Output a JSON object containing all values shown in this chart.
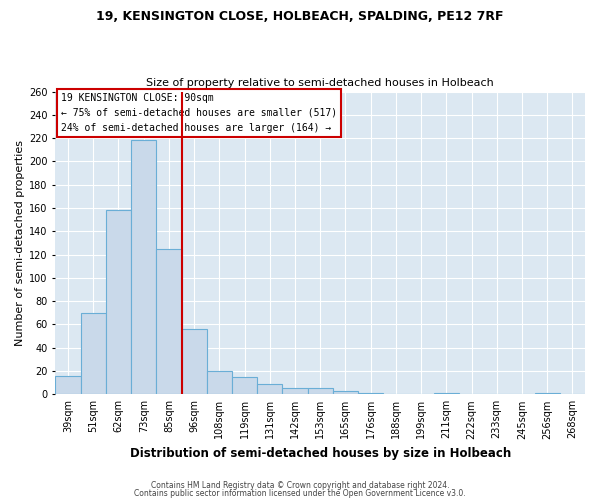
{
  "title": "19, KENSINGTON CLOSE, HOLBEACH, SPALDING, PE12 7RF",
  "subtitle": "Size of property relative to semi-detached houses in Holbeach",
  "xlabel": "Distribution of semi-detached houses by size in Holbeach",
  "ylabel": "Number of semi-detached properties",
  "bin_labels": [
    "39sqm",
    "51sqm",
    "62sqm",
    "73sqm",
    "85sqm",
    "96sqm",
    "108sqm",
    "119sqm",
    "131sqm",
    "142sqm",
    "153sqm",
    "165sqm",
    "176sqm",
    "188sqm",
    "199sqm",
    "211sqm",
    "222sqm",
    "233sqm",
    "245sqm",
    "256sqm",
    "268sqm"
  ],
  "bin_values": [
    16,
    70,
    158,
    218,
    125,
    56,
    20,
    15,
    9,
    5,
    5,
    3,
    1,
    0,
    0,
    1,
    0,
    0,
    0,
    1,
    0
  ],
  "vline_index": 4.5,
  "annotation_title": "19 KENSINGTON CLOSE: 90sqm",
  "annotation_line1": "← 75% of semi-detached houses are smaller (517)",
  "annotation_line2": "24% of semi-detached houses are larger (164) →",
  "bar_face_color": "#c9d9ea",
  "bar_edge_color": "#6aaed6",
  "line_color": "#cc0000",
  "plot_bg_color": "#dce8f2",
  "fig_bg_color": "#ffffff",
  "grid_color": "#ffffff",
  "ylim": [
    0,
    260
  ],
  "yticks": [
    0,
    20,
    40,
    60,
    80,
    100,
    120,
    140,
    160,
    180,
    200,
    220,
    240,
    260
  ],
  "title_fontsize": 9,
  "subtitle_fontsize": 8,
  "xlabel_fontsize": 8.5,
  "ylabel_fontsize": 8,
  "tick_fontsize": 7,
  "annot_fontsize": 7,
  "footer1": "Contains HM Land Registry data © Crown copyright and database right 2024.",
  "footer2": "Contains public sector information licensed under the Open Government Licence v3.0.",
  "footer_fontsize": 5.5
}
